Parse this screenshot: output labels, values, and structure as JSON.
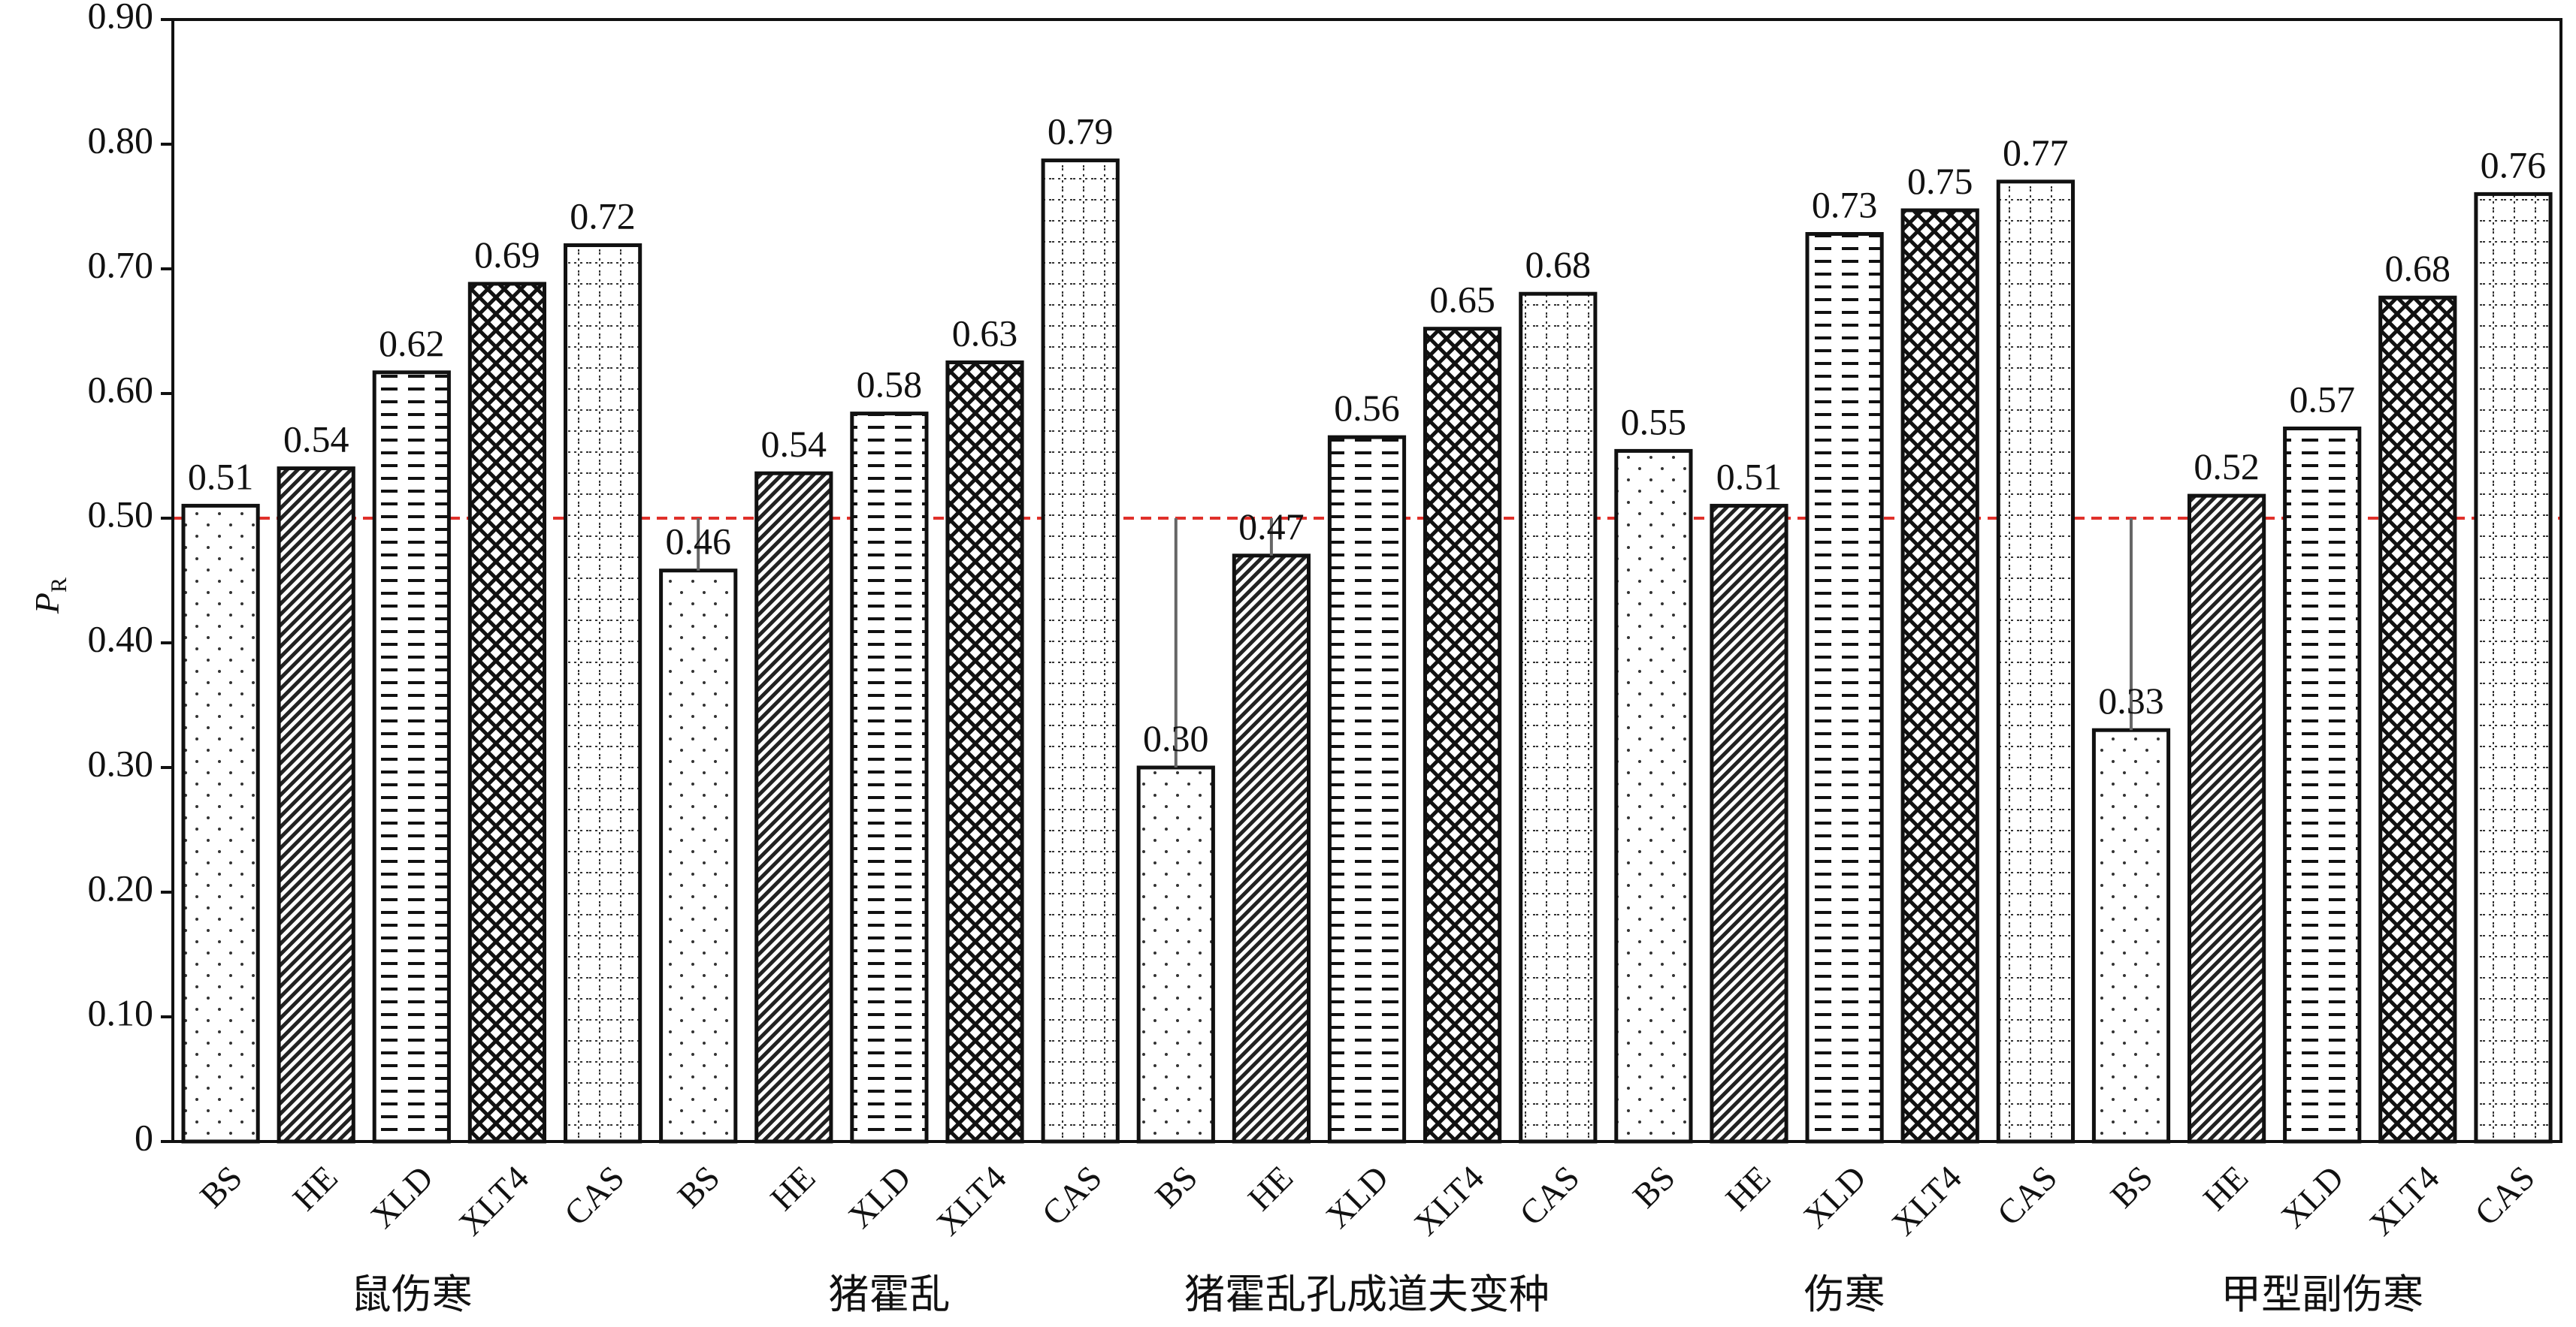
{
  "chart_data": {
    "type": "bar",
    "ylabel": "P",
    "ylabel_sub": "R",
    "ylim": [
      0,
      0.9
    ],
    "yticks": [
      "0",
      "0.10",
      "0.20",
      "0.30",
      "0.40",
      "0.50",
      "0.60",
      "0.70",
      "0.80",
      "0.90"
    ],
    "reference_line": 0.5,
    "reference_color": "#e0302a",
    "grid": false,
    "patterns": [
      {
        "method": "BS",
        "pattern": "sparse-dots"
      },
      {
        "method": "HE",
        "pattern": "diagonal-hatch"
      },
      {
        "method": "XLD",
        "pattern": "horizontal-dashes"
      },
      {
        "method": "XLT4",
        "pattern": "crosshatch"
      },
      {
        "method": "CAS",
        "pattern": "dotted-grid"
      }
    ],
    "groups": [
      {
        "name": "鼠伤寒",
        "bars": [
          {
            "label": "BS",
            "value": 0.51,
            "display": "0.51"
          },
          {
            "label": "HE",
            "value": 0.54,
            "display": "0.54"
          },
          {
            "label": "XLD",
            "value": 0.617,
            "display": "0.62"
          },
          {
            "label": "XLT4",
            "value": 0.688,
            "display": "0.69"
          },
          {
            "label": "CAS",
            "value": 0.719,
            "display": "0.72"
          }
        ]
      },
      {
        "name": "猪霍乱",
        "bars": [
          {
            "label": "BS",
            "value": 0.458,
            "display": "0.46"
          },
          {
            "label": "HE",
            "value": 0.536,
            "display": "0.54"
          },
          {
            "label": "XLD",
            "value": 0.584,
            "display": "0.58"
          },
          {
            "label": "XLT4",
            "value": 0.625,
            "display": "0.63"
          },
          {
            "label": "CAS",
            "value": 0.787,
            "display": "0.79"
          }
        ]
      },
      {
        "name": "猪霍乱孔成道夫变种",
        "bars": [
          {
            "label": "BS",
            "value": 0.3,
            "display": "0.30"
          },
          {
            "label": "HE",
            "value": 0.47,
            "display": "0.47"
          },
          {
            "label": "XLD",
            "value": 0.565,
            "display": "0.56"
          },
          {
            "label": "XLT4",
            "value": 0.652,
            "display": "0.65"
          },
          {
            "label": "CAS",
            "value": 0.68,
            "display": "0.68"
          }
        ]
      },
      {
        "name": "伤寒",
        "bars": [
          {
            "label": "BS",
            "value": 0.554,
            "display": "0.55"
          },
          {
            "label": "HE",
            "value": 0.51,
            "display": "0.51"
          },
          {
            "label": "XLD",
            "value": 0.728,
            "display": "0.73"
          },
          {
            "label": "XLT4",
            "value": 0.747,
            "display": "0.75"
          },
          {
            "label": "CAS",
            "value": 0.77,
            "display": "0.77"
          }
        ]
      },
      {
        "name": "甲型副伤寒",
        "bars": [
          {
            "label": "BS",
            "value": 0.33,
            "display": "0.33"
          },
          {
            "label": "HE",
            "value": 0.518,
            "display": "0.52"
          },
          {
            "label": "XLD",
            "value": 0.572,
            "display": "0.57"
          },
          {
            "label": "XLT4",
            "value": 0.677,
            "display": "0.68"
          },
          {
            "label": "CAS",
            "value": 0.76,
            "display": "0.76"
          }
        ]
      }
    ]
  }
}
